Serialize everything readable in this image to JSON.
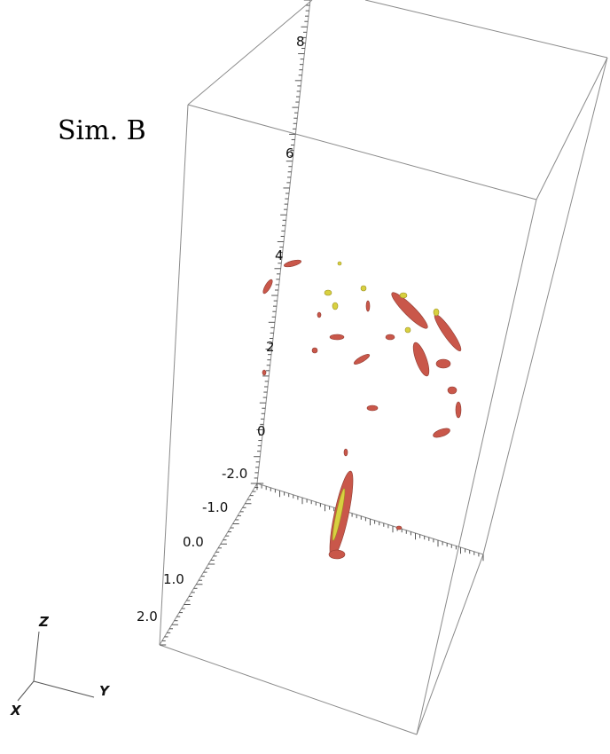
{
  "title": "Sim. B",
  "z_axis": {
    "ticks": [
      "8",
      "6",
      "4",
      "2",
      "0"
    ]
  },
  "x_axis": {
    "ticks": [
      "-2.0",
      "-1.0",
      "0.0",
      "1.0",
      "2.0"
    ]
  },
  "orientation": {
    "z": "Z",
    "y": "Y",
    "x": "X"
  }
}
